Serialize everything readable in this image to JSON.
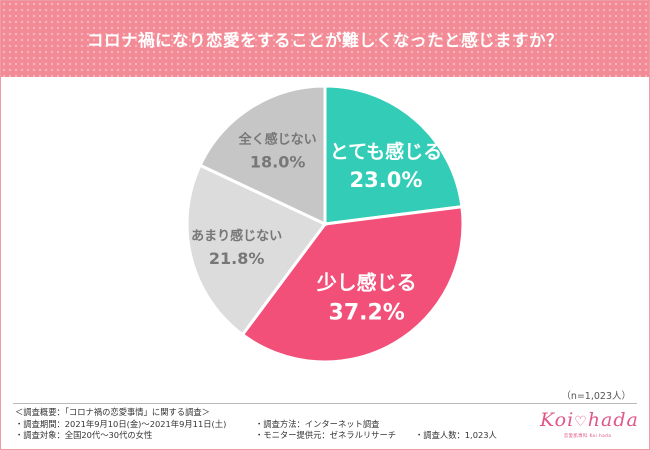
{
  "header": {
    "title": "コロナ禍になり恋愛をすることが難しくなったと感じますか？"
  },
  "chart_data": {
    "type": "pie",
    "title": "コロナ禍になり恋愛をすることが難しくなったと感じますか？",
    "slices": [
      {
        "label": "とても感じる",
        "value": 23.0,
        "value_text": "23.0%",
        "color": "#33cdb7"
      },
      {
        "label": "少し感じる",
        "value": 37.2,
        "value_text": "37.2%",
        "color": "#f25079"
      },
      {
        "label": "あまり感じない",
        "value": 21.8,
        "value_text": "21.8%",
        "color": "#dcdcdc"
      },
      {
        "label": "全く感じない",
        "value": 18.0,
        "value_text": "18.0%",
        "color": "#c6c6c6"
      }
    ],
    "start_angle": "12 o'clock",
    "direction": "clockwise",
    "legend": "none (labels on slices)"
  },
  "note": {
    "sample_size": "（n=1,023人）"
  },
  "footer": {
    "summary": "＜調査概要：「コロナ禍の恋愛事情」に関する調査＞",
    "period": "・調査期間：2021年9月10日(金)～2021年9月11日(土)",
    "method": "・調査方法：インターネット調査",
    "target": "・調査対象：全国20代～30代の女性",
    "provider": "・モニター提供元：ゼネラルリサーチ",
    "count": "・調査人数：1,023人"
  },
  "logo": {
    "text_left": "Koi",
    "text_right": "hada",
    "tagline": "恋愛肌専科 Koi hada"
  }
}
